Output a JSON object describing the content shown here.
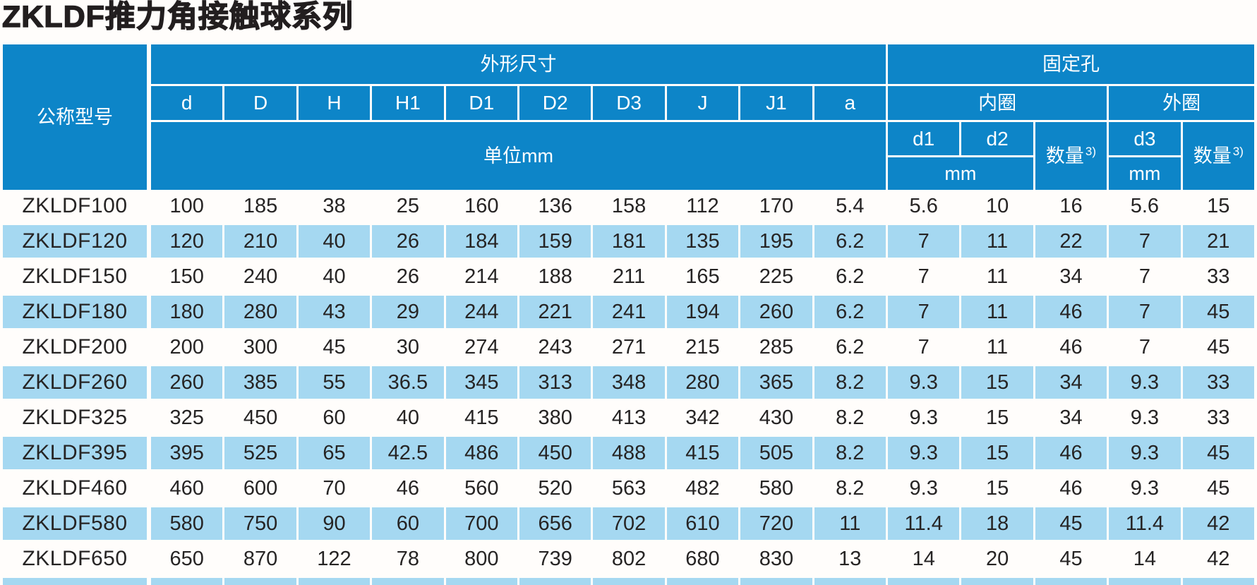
{
  "title": "ZKLDF推力角接触球系列",
  "colors": {
    "header_blue": "#0d85c8",
    "row_alt_blue": "#a5d8f1",
    "text_dark": "#262424"
  },
  "table": {
    "col_model": "公称型号",
    "group_dims": "外形尺寸",
    "group_holes": "固定孔",
    "dims_cols": [
      "d",
      "D",
      "H",
      "H1",
      "D1",
      "D2",
      "D3",
      "J",
      "J1",
      "a"
    ],
    "unit_label": "单位mm",
    "inner_ring": "内圈",
    "outer_ring": "外圈",
    "hole_cols": [
      "d1",
      "d2",
      "d3"
    ],
    "qty_label": "数量",
    "qty_sup": "3)",
    "mm_label": "mm",
    "rows": [
      {
        "model": "ZKLDF100",
        "values": [
          "100",
          "185",
          "38",
          "25",
          "160",
          "136",
          "158",
          "112",
          "170",
          "5.4",
          "5.6",
          "10",
          "16",
          "5.6",
          "15"
        ]
      },
      {
        "model": "ZKLDF120",
        "values": [
          "120",
          "210",
          "40",
          "26",
          "184",
          "159",
          "181",
          "135",
          "195",
          "6.2",
          "7",
          "11",
          "22",
          "7",
          "21"
        ]
      },
      {
        "model": "ZKLDF150",
        "values": [
          "150",
          "240",
          "40",
          "26",
          "214",
          "188",
          "211",
          "165",
          "225",
          "6.2",
          "7",
          "11",
          "34",
          "7",
          "33"
        ]
      },
      {
        "model": "ZKLDF180",
        "values": [
          "180",
          "280",
          "43",
          "29",
          "244",
          "221",
          "241",
          "194",
          "260",
          "6.2",
          "7",
          "11",
          "46",
          "7",
          "45"
        ]
      },
      {
        "model": "ZKLDF200",
        "values": [
          "200",
          "300",
          "45",
          "30",
          "274",
          "243",
          "271",
          "215",
          "285",
          "6.2",
          "7",
          "11",
          "46",
          "7",
          "45"
        ]
      },
      {
        "model": "ZKLDF260",
        "values": [
          "260",
          "385",
          "55",
          "36.5",
          "345",
          "313",
          "348",
          "280",
          "365",
          "8.2",
          "9.3",
          "15",
          "34",
          "9.3",
          "33"
        ]
      },
      {
        "model": "ZKLDF325",
        "values": [
          "325",
          "450",
          "60",
          "40",
          "415",
          "380",
          "413",
          "342",
          "430",
          "8.2",
          "9.3",
          "15",
          "34",
          "9.3",
          "33"
        ]
      },
      {
        "model": "ZKLDF395",
        "values": [
          "395",
          "525",
          "65",
          "42.5",
          "486",
          "450",
          "488",
          "415",
          "505",
          "8.2",
          "9.3",
          "15",
          "46",
          "9.3",
          "45"
        ]
      },
      {
        "model": "ZKLDF460",
        "values": [
          "460",
          "600",
          "70",
          "46",
          "560",
          "520",
          "563",
          "482",
          "580",
          "8.2",
          "9.3",
          "15",
          "46",
          "9.3",
          "45"
        ]
      },
      {
        "model": "ZKLDF580",
        "values": [
          "580",
          "750",
          "90",
          "60",
          "700",
          "656",
          "702",
          "610",
          "720",
          "11",
          "11.4",
          "18",
          "45",
          "11.4",
          "42"
        ]
      },
      {
        "model": "ZKLDF650",
        "values": [
          "650",
          "870",
          "122",
          "78",
          "800",
          "739",
          "802",
          "680",
          "830",
          "13",
          "14",
          "20",
          "45",
          "14",
          "42"
        ]
      }
    ]
  }
}
